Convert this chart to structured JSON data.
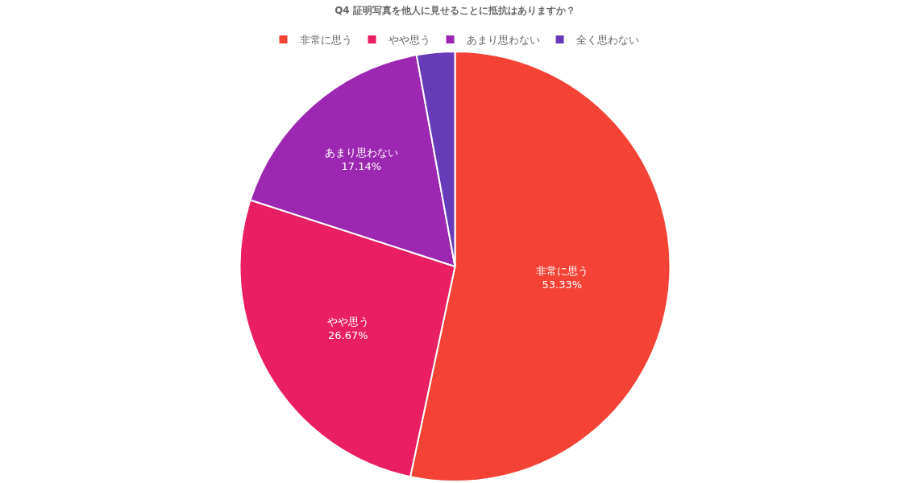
{
  "chart_data": {
    "type": "pie",
    "title": "Q4 証明写真を他人に見せることに抵抗はありますか？",
    "categories": [
      "非常に思う",
      "やや思う",
      "あまり思わない",
      "全く思わない"
    ],
    "values": [
      53.33,
      26.67,
      17.14,
      2.86
    ],
    "colors": [
      "#f44336",
      "#e91e63",
      "#9c27b0",
      "#673ab7"
    ],
    "value_labels": [
      "53.33%",
      "26.67%",
      "17.14%",
      null
    ],
    "legend": "top"
  }
}
